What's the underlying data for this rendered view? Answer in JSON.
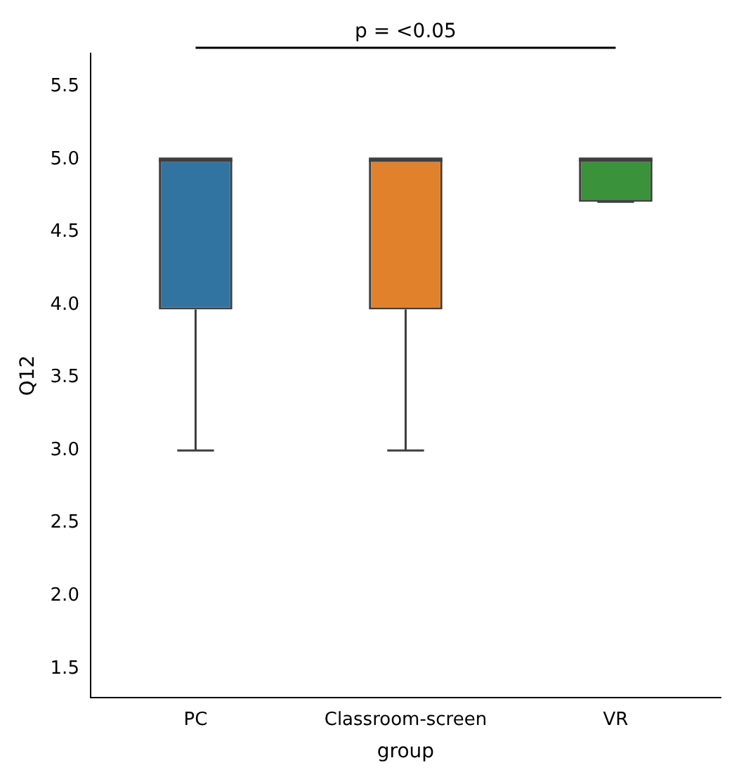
{
  "chart_data": {
    "type": "box",
    "categories": [
      "PC",
      "Classroom-screen",
      "VR"
    ],
    "boxes": [
      {
        "low": 3.0,
        "q1": 3.97,
        "median": 5.0,
        "q3": 5.0,
        "high": 5.0
      },
      {
        "low": 3.0,
        "q1": 3.97,
        "median": 5.0,
        "q3": 5.0,
        "high": 5.0
      },
      {
        "low": 4.71,
        "q1": 4.71,
        "median": 5.0,
        "q3": 5.0,
        "high": 5.0
      }
    ],
    "colors": [
      "#3274a1",
      "#e1812c",
      "#3a923a"
    ],
    "xlabel": "group",
    "ylabel": "Q12",
    "ylim": [
      1.3,
      5.73
    ],
    "yticks": [
      1.5,
      {
        "value": 2,
        "label": "2.0"
      },
      2.5,
      {
        "value": 3,
        "label": "3.0"
      },
      3.5,
      {
        "value": 4,
        "label": "4.0"
      },
      4.5,
      {
        "value": 5,
        "label": "5.0"
      },
      5.5
    ],
    "annotations": [
      "p = <0.05"
    ],
    "grid": false,
    "legend": false
  }
}
